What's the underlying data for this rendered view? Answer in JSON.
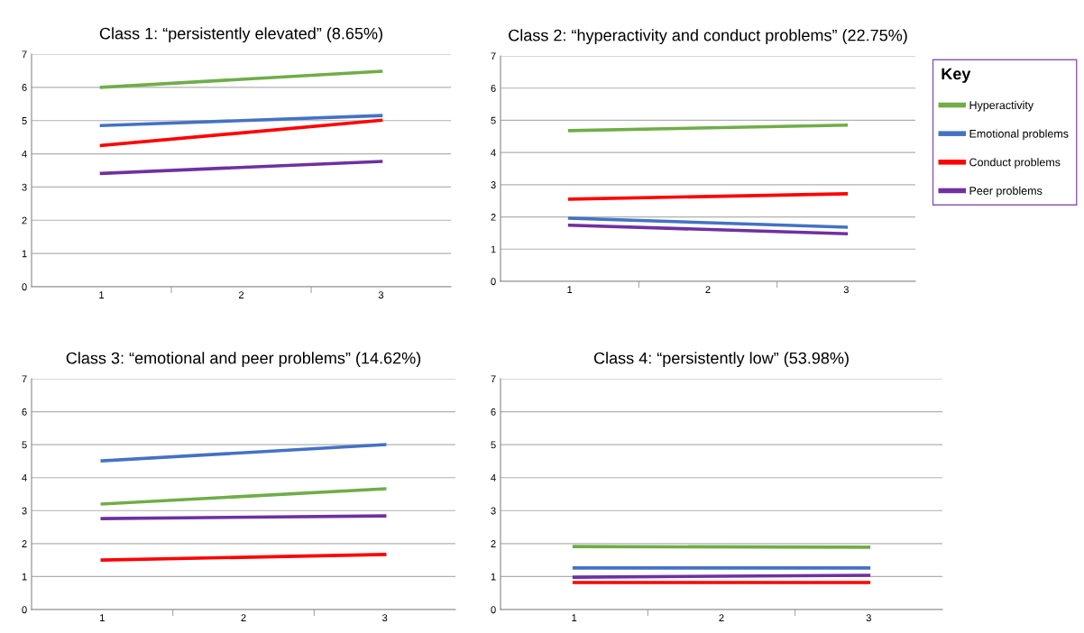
{
  "chart_data": [
    {
      "type": "line",
      "title": "Class 1: “persistently elevated” (8.65%)",
      "categories": [
        "1",
        "2",
        "3"
      ],
      "ylim": [
        0,
        7
      ],
      "yticks": [
        0,
        1,
        2,
        3,
        4,
        5,
        6,
        7
      ],
      "grid": "y",
      "legend": "right",
      "legend_title": "Key",
      "series": [
        {
          "name": "Hyperactivity",
          "color": "#70ad47",
          "values": [
            6.0,
            null,
            6.48
          ]
        },
        {
          "name": "Emotional problems",
          "color": "#4472c4",
          "values": [
            4.85,
            null,
            5.15
          ]
        },
        {
          "name": "Conduct problems",
          "color": "#ff0000",
          "values": [
            4.25,
            null,
            5.01
          ]
        },
        {
          "name": "Peer problems",
          "color": "#7030a0",
          "values": [
            3.41,
            null,
            3.77
          ]
        }
      ]
    },
    {
      "type": "line",
      "title": "Class 2: “hyperactivity and conduct problems” (22.75%)",
      "categories": [
        "1",
        "2",
        "3"
      ],
      "ylim": [
        0,
        7
      ],
      "yticks": [
        0,
        1,
        2,
        3,
        4,
        5,
        6,
        7
      ],
      "grid": "y",
      "series": [
        {
          "color": "#70ad47",
          "values": [
            4.68,
            null,
            4.85
          ]
        },
        {
          "color": "#4472c4",
          "values": [
            1.96,
            null,
            1.68
          ]
        },
        {
          "color": "#ff0000",
          "values": [
            2.55,
            null,
            2.72
          ]
        },
        {
          "color": "#7030a0",
          "values": [
            1.74,
            null,
            1.48
          ]
        }
      ]
    },
    {
      "type": "line",
      "title": "Class 3: “emotional and peer problems” (14.62%)",
      "categories": [
        "1",
        "2",
        "3"
      ],
      "ylim": [
        0,
        7
      ],
      "yticks": [
        0,
        1,
        2,
        3,
        4,
        5,
        6,
        7
      ],
      "grid": "y",
      "series": [
        {
          "color": "#70ad47",
          "values": [
            3.2,
            null,
            3.66
          ]
        },
        {
          "color": "#4472c4",
          "values": [
            4.51,
            null,
            5.0
          ]
        },
        {
          "color": "#ff0000",
          "values": [
            1.5,
            null,
            1.67
          ]
        },
        {
          "color": "#7030a0",
          "values": [
            2.76,
            null,
            2.84
          ]
        }
      ]
    },
    {
      "type": "line",
      "title": "Class 4: “persistently low” (53.98%)",
      "categories": [
        "1",
        "2",
        "3"
      ],
      "ylim": [
        0,
        7
      ],
      "yticks": [
        0,
        1,
        2,
        3,
        4,
        5,
        6,
        7
      ],
      "grid": "y",
      "series": [
        {
          "color": "#70ad47",
          "values": [
            1.91,
            null,
            1.89
          ]
        },
        {
          "color": "#4472c4",
          "values": [
            1.26,
            null,
            1.26
          ]
        },
        {
          "color": "#ff0000",
          "values": [
            0.82,
            null,
            0.82
          ]
        },
        {
          "color": "#7030a0",
          "values": [
            0.98,
            null,
            1.04
          ]
        }
      ]
    }
  ]
}
